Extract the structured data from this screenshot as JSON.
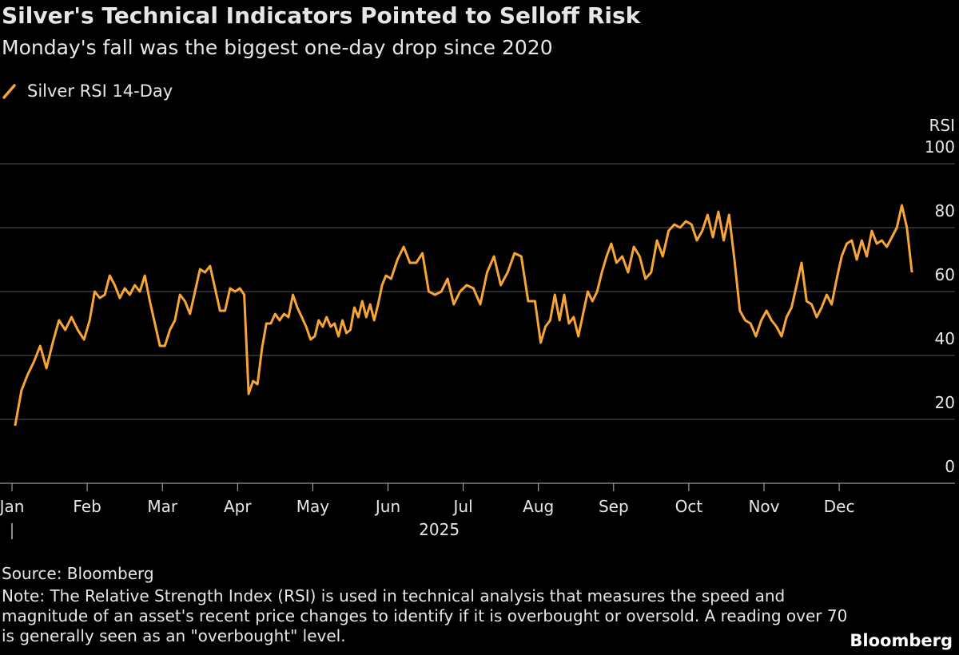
{
  "chart_data": {
    "type": "line",
    "title": "Silver's Technical Indicators Pointed to Selloff Risk",
    "subtitle": "Monday's fall was the biggest one-day drop since 2020",
    "y_label": "RSI",
    "categories": [
      "Jan",
      "Feb",
      "Mar",
      "Apr",
      "May",
      "Jun",
      "Jul",
      "Aug",
      "Sep",
      "Oct",
      "Nov",
      "Dec"
    ],
    "year": "2025",
    "series": [
      {
        "name": "Silver RSI 14-Day",
        "color": "#f7a539",
        "values": [
          [
            18,
            29,
            34,
            38,
            43,
            36,
            44,
            51,
            48,
            52,
            48,
            45
          ],
          [
            51,
            60,
            58,
            59,
            65,
            62,
            58,
            61,
            59,
            62,
            60,
            65,
            57,
            50,
            43
          ],
          [
            43,
            48,
            51,
            59,
            57,
            53,
            60,
            67,
            66,
            68,
            61,
            54,
            54,
            61,
            60
          ],
          [
            61,
            59,
            28,
            32,
            31,
            42,
            50,
            50,
            53,
            51,
            53,
            52,
            59,
            55,
            52,
            49,
            45
          ],
          [
            46,
            51,
            49,
            52,
            49,
            50,
            46,
            51,
            47,
            48,
            55,
            52,
            57,
            52,
            56,
            51,
            56,
            62,
            65
          ],
          [
            64,
            70,
            74,
            69,
            69,
            72,
            60,
            59,
            60,
            64,
            56,
            60
          ],
          [
            62,
            61,
            56,
            66,
            71,
            62,
            66,
            72,
            71,
            57,
            57
          ],
          [
            44,
            49,
            51,
            59,
            51,
            59,
            50,
            52,
            46,
            53,
            60,
            57,
            60,
            66,
            71,
            75
          ],
          [
            69,
            71,
            66,
            74,
            71,
            64,
            66,
            76,
            71,
            79,
            81,
            80,
            82
          ],
          [
            81,
            76,
            79,
            84,
            77,
            85,
            76,
            84,
            70,
            54,
            51,
            50,
            46,
            51
          ],
          [
            54,
            51,
            49,
            46,
            52,
            55,
            62,
            69,
            57,
            56,
            52,
            55,
            59,
            56,
            64
          ],
          [
            71,
            75,
            76,
            70,
            76,
            71,
            79,
            75,
            76,
            74,
            77,
            80,
            87,
            80,
            66
          ]
        ]
      }
    ],
    "ylim": [
      0,
      100
    ],
    "yticks": [
      0,
      20,
      40,
      60,
      80,
      100
    ],
    "grid": true,
    "source": "Source: Bloomberg",
    "note": "Note: The Relative Strength Index (RSI) is used in technical analysis that measures the speed and magnitude of an asset's recent price changes to identify if it is overbought or oversold. A reading over 70 is generally seen as an \"overbought\" level.",
    "brand": "Bloomberg"
  }
}
